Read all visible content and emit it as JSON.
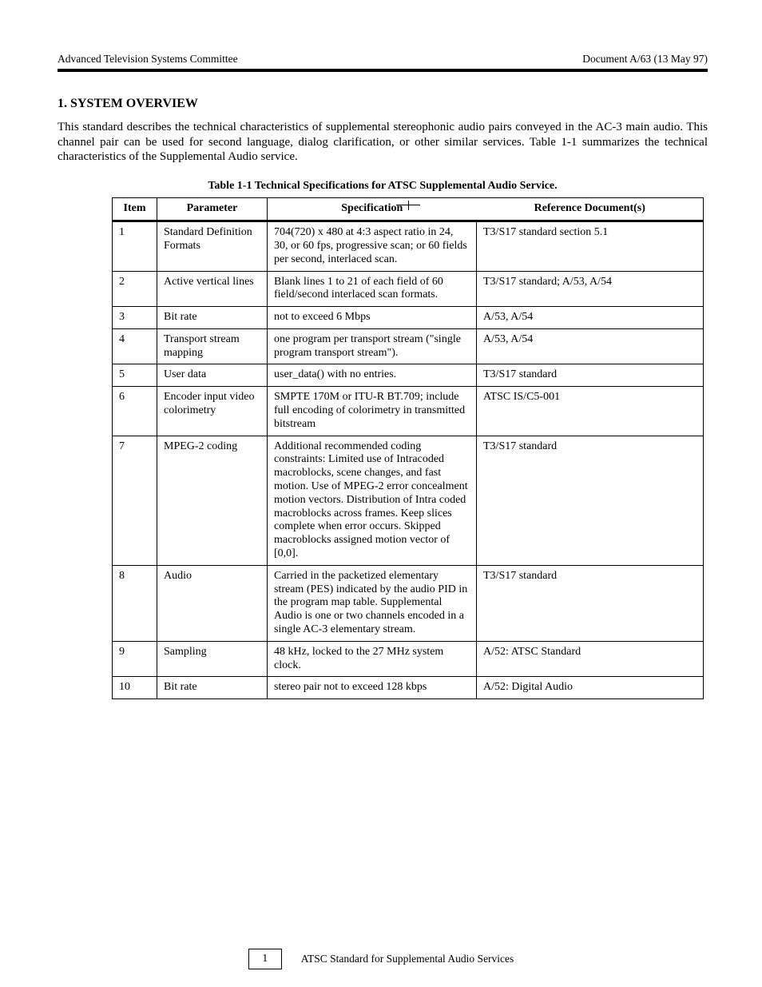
{
  "header": {
    "left": "Advanced Television Systems Committee",
    "right": "Document A/63 (13 May 97)"
  },
  "section": {
    "heading": "1. SYSTEM OVERVIEW",
    "intro": "This standard describes the technical characteristics of supplemental stereophonic audio pairs conveyed in the AC-3 main audio. This channel pair can be used for second language, dialog clarification, or other similar services. Table 1-1 summarizes the technical characteristics of the Supplemental Audio service.",
    "caption": "Table 1-1 Technical Specifications for ATSC Supplemental Audio Service."
  },
  "table": {
    "columns": [
      "Item",
      "Parameter",
      "Specification",
      "Reference Document(s)"
    ],
    "rows": [
      [
        "1",
        "Standard Definition Formats",
        "704(720) x 480 at 4:3 aspect ratio in 24, 30, or 60 fps, progressive scan; or 60 fields per second, interlaced scan.",
        "T3/S17 standard section 5.1"
      ],
      [
        "2",
        "Active vertical lines",
        "Blank lines 1 to 21 of each field of 60 field/second interlaced scan formats.",
        "T3/S17 standard; A/53, A/54"
      ],
      [
        "3",
        "Bit rate",
        "not to exceed 6 Mbps",
        "A/53, A/54"
      ],
      [
        "4",
        "Transport stream mapping",
        "one program per transport stream (\"single program transport stream\").",
        "A/53, A/54"
      ],
      [
        "5",
        "User data",
        "user_data() with no entries.",
        "T3/S17 standard"
      ],
      [
        "6",
        "Encoder input video colorimetry",
        "SMPTE 170M or ITU-R BT.709; include full encoding of colorimetry in transmitted bitstream",
        "ATSC IS/C5-001"
      ],
      [
        "7",
        "MPEG-2 coding",
        "Additional recommended coding constraints: Limited use of Intracoded macroblocks, scene changes, and fast motion. Use of MPEG-2 error concealment motion vectors. Distribution of Intra coded macroblocks across frames. Keep slices complete when error occurs. Skipped macroblocks assigned motion vector of [0,0].",
        "T3/S17 standard"
      ],
      [
        "8",
        "Audio",
        "Carried in the packetized elementary stream (PES) indicated by the audio PID in the program map table. Supplemental Audio is one or two channels encoded in a single AC-3 elementary stream.",
        "T3/S17 standard"
      ],
      [
        "9",
        "Sampling",
        "48 kHz, locked to the 27 MHz system clock.",
        "A/52: ATSC Standard"
      ],
      [
        "10",
        "Bit rate",
        "stereo pair not to exceed 128 kbps",
        "A/52: Digital Audio"
      ]
    ]
  },
  "footer": {
    "page": "1",
    "text": "ATSC Standard for Supplemental Audio Services"
  },
  "colors": {
    "text": "#000000",
    "background": "#ffffff",
    "border": "#000000"
  }
}
